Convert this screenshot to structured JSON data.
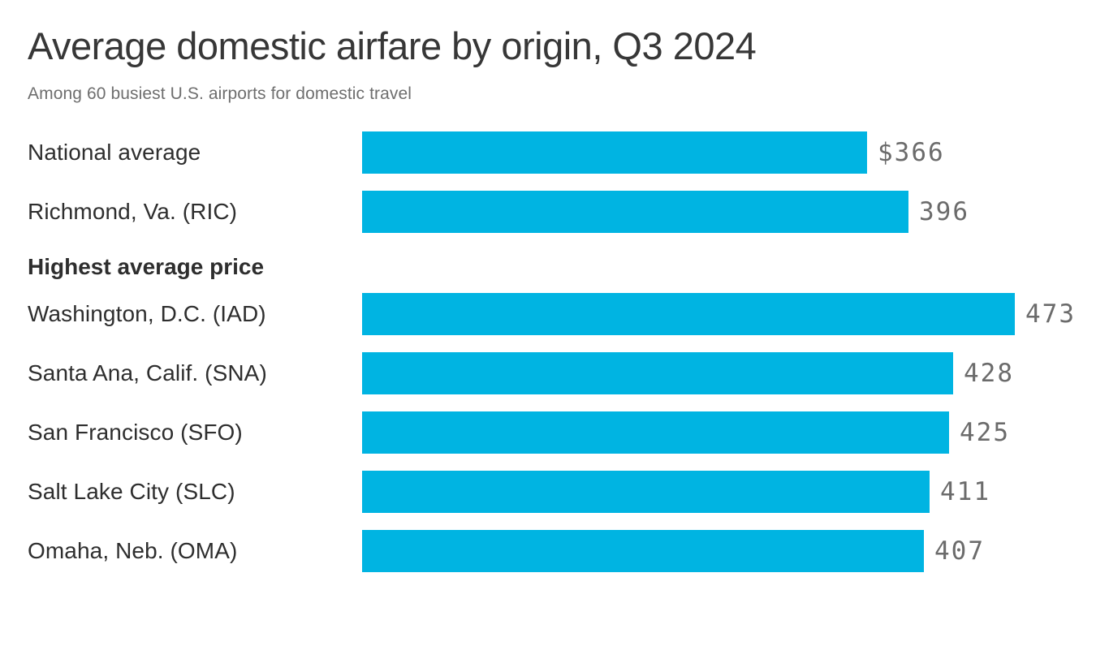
{
  "header": {
    "title": "Average domestic airfare by origin, Q3 2024",
    "subtitle": "Among 60 busiest U.S. airports for domestic travel"
  },
  "chart_data": {
    "type": "bar",
    "orientation": "horizontal",
    "title": "Average domestic airfare by origin, Q3 2024",
    "subtitle": "Among 60 busiest U.S. airports for domestic travel",
    "unit": "USD",
    "xlim": [
      0,
      473
    ],
    "bar_color": "#00b4e2",
    "value_label_color": "#6b6b6b",
    "grid": false,
    "legend": false,
    "groups": [
      {
        "section_label": "",
        "rows": [
          {
            "label": "National average",
            "value": 366,
            "value_label": "$366"
          },
          {
            "label": "Richmond, Va. (RIC)",
            "value": 396,
            "value_label": "396"
          }
        ]
      },
      {
        "section_label": "Highest average price",
        "rows": [
          {
            "label": "Washington, D.C. (IAD)",
            "value": 473,
            "value_label": "473"
          },
          {
            "label": "Santa Ana, Calif. (SNA)",
            "value": 428,
            "value_label": "428"
          },
          {
            "label": "San Francisco (SFO)",
            "value": 425,
            "value_label": "425"
          },
          {
            "label": "Salt Lake City (SLC)",
            "value": 411,
            "value_label": "411"
          },
          {
            "label": "Omaha, Neb. (OMA)",
            "value": 407,
            "value_label": "407"
          }
        ]
      }
    ]
  }
}
